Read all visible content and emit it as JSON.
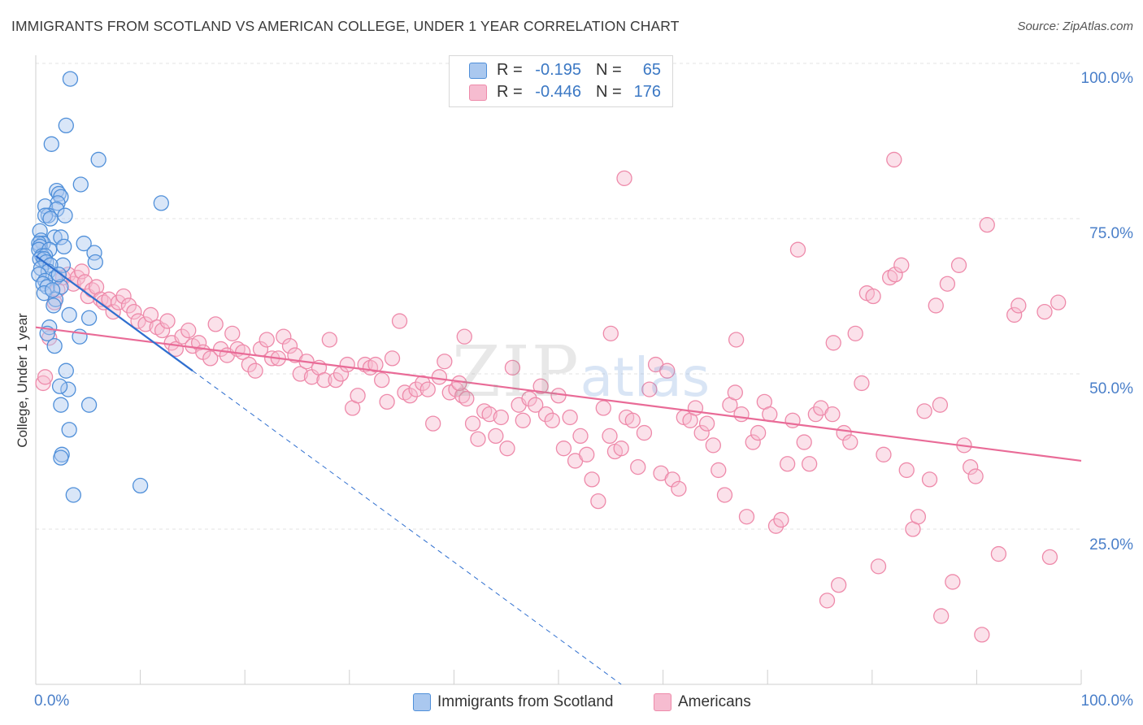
{
  "colors": {
    "blue_fill": "#aac8ef",
    "blue_stroke": "#4f8fd9",
    "blue_line": "#2f6fcf",
    "pink_fill": "#f6bcd0",
    "pink_stroke": "#ee8aaa",
    "pink_line": "#e96b97",
    "grid": "#e3e3e3",
    "axis_text": "#4a7fc9"
  },
  "chart_data": {
    "type": "scatter",
    "title": "IMMIGRANTS FROM SCOTLAND VS AMERICAN COLLEGE, UNDER 1 YEAR CORRELATION CHART",
    "source": "Source: ZipAtlas.com",
    "xlabel": "",
    "ylabel": "College, Under 1 year",
    "xlim": [
      0,
      100
    ],
    "ylim": [
      0,
      100
    ],
    "x_tick_labels": {
      "left": "0.0%",
      "right": "100.0%"
    },
    "y_tick_labels": [
      {
        "value": 100,
        "label": "100.0%"
      },
      {
        "value": 75,
        "label": "75.0%"
      },
      {
        "value": 50,
        "label": "50.0%"
      },
      {
        "value": 25,
        "label": "25.0%"
      }
    ],
    "watermark": {
      "zip": "ZIP",
      "atlas": "atlas"
    },
    "legend": [
      {
        "series": "Immigrants from Scotland",
        "r_label": "R =",
        "r_value": "-0.195",
        "n_label": "N =",
        "n_value": "65"
      },
      {
        "series": "Americans",
        "r_label": "R =",
        "r_value": "-0.446",
        "n_label": "N =",
        "n_value": "176"
      }
    ],
    "series": [
      {
        "name": "Immigrants from Scotland",
        "trendline": {
          "x0": 0,
          "y0": 69.0,
          "x1": 15.0,
          "y1": 50.5,
          "dash_to_x": 56.0,
          "dash_to_y": 0
        },
        "points": [
          [
            3.3,
            97.5
          ],
          [
            2.9,
            90.0
          ],
          [
            1.5,
            87.0
          ],
          [
            6.0,
            84.5
          ],
          [
            4.3,
            80.5
          ],
          [
            2.0,
            79.5
          ],
          [
            2.2,
            79.0
          ],
          [
            2.4,
            78.5
          ],
          [
            2.1,
            77.5
          ],
          [
            12.0,
            77.5
          ],
          [
            0.9,
            77.0
          ],
          [
            2.0,
            76.5
          ],
          [
            1.2,
            75.5
          ],
          [
            2.8,
            75.5
          ],
          [
            0.9,
            75.5
          ],
          [
            1.4,
            75.0
          ],
          [
            0.4,
            73.0
          ],
          [
            1.8,
            72.0
          ],
          [
            2.4,
            72.0
          ],
          [
            0.5,
            71.5
          ],
          [
            0.7,
            71.0
          ],
          [
            0.3,
            71.0
          ],
          [
            4.6,
            71.0
          ],
          [
            2.7,
            70.5
          ],
          [
            0.4,
            70.5
          ],
          [
            0.3,
            70.0
          ],
          [
            1.3,
            70.0
          ],
          [
            5.6,
            69.5
          ],
          [
            0.6,
            69.0
          ],
          [
            0.9,
            69.0
          ],
          [
            0.4,
            68.5
          ],
          [
            0.8,
            68.5
          ],
          [
            1.0,
            68.0
          ],
          [
            5.7,
            68.0
          ],
          [
            2.6,
            67.5
          ],
          [
            1.4,
            67.5
          ],
          [
            0.5,
            67.0
          ],
          [
            1.2,
            66.5
          ],
          [
            0.3,
            66.0
          ],
          [
            1.9,
            65.5
          ],
          [
            0.9,
            65.0
          ],
          [
            0.7,
            64.5
          ],
          [
            1.1,
            64.0
          ],
          [
            2.4,
            64.0
          ],
          [
            0.8,
            63.0
          ],
          [
            1.9,
            62.0
          ],
          [
            1.7,
            61.0
          ],
          [
            3.2,
            59.5
          ],
          [
            5.1,
            59.0
          ],
          [
            1.3,
            57.5
          ],
          [
            1.1,
            56.5
          ],
          [
            4.2,
            56.0
          ],
          [
            1.8,
            54.5
          ],
          [
            2.9,
            50.5
          ],
          [
            3.1,
            47.5
          ],
          [
            2.3,
            48.0
          ],
          [
            2.4,
            45.0
          ],
          [
            5.1,
            45.0
          ],
          [
            3.2,
            41.0
          ],
          [
            2.5,
            37.0
          ],
          [
            2.4,
            36.5
          ],
          [
            3.6,
            30.5
          ],
          [
            10.0,
            32.0
          ],
          [
            2.2,
            66.0
          ],
          [
            1.6,
            63.5
          ]
        ]
      },
      {
        "name": "Americans",
        "trendline": {
          "x0": 0,
          "y0": 57.5,
          "x1": 100,
          "y1": 36.0
        },
        "points": [
          [
            0.7,
            48.5
          ],
          [
            0.9,
            49.5
          ],
          [
            1.3,
            55.8
          ],
          [
            1.8,
            61.5
          ],
          [
            2.1,
            63.5
          ],
          [
            2.6,
            65.5
          ],
          [
            3.1,
            66.0
          ],
          [
            3.6,
            64.5
          ],
          [
            4.0,
            65.5
          ],
          [
            4.4,
            66.5
          ],
          [
            4.7,
            64.8
          ],
          [
            5.0,
            62.5
          ],
          [
            5.4,
            63.5
          ],
          [
            5.8,
            64.0
          ],
          [
            6.2,
            62.0
          ],
          [
            6.5,
            61.5
          ],
          [
            7.0,
            62.0
          ],
          [
            7.4,
            60.0
          ],
          [
            7.9,
            61.5
          ],
          [
            8.4,
            62.5
          ],
          [
            8.9,
            61.0
          ],
          [
            9.4,
            60.0
          ],
          [
            9.8,
            58.5
          ],
          [
            10.5,
            58.0
          ],
          [
            11.0,
            59.5
          ],
          [
            11.6,
            57.5
          ],
          [
            12.1,
            57.0
          ],
          [
            12.6,
            58.5
          ],
          [
            13.0,
            55.0
          ],
          [
            13.4,
            54.0
          ],
          [
            14.0,
            56.0
          ],
          [
            14.6,
            57.0
          ],
          [
            15.0,
            54.5
          ],
          [
            15.6,
            55.0
          ],
          [
            16.0,
            53.5
          ],
          [
            16.7,
            52.5
          ],
          [
            17.2,
            58.0
          ],
          [
            17.7,
            54.0
          ],
          [
            18.3,
            53.0
          ],
          [
            18.8,
            56.5
          ],
          [
            19.3,
            54.0
          ],
          [
            19.8,
            53.5
          ],
          [
            20.4,
            51.5
          ],
          [
            21.0,
            50.5
          ],
          [
            21.5,
            54.0
          ],
          [
            22.1,
            55.5
          ],
          [
            22.6,
            52.5
          ],
          [
            23.2,
            52.5
          ],
          [
            23.7,
            56.0
          ],
          [
            24.3,
            54.5
          ],
          [
            24.8,
            53.0
          ],
          [
            25.3,
            50.0
          ],
          [
            25.9,
            52.0
          ],
          [
            26.4,
            49.5
          ],
          [
            27.1,
            51.0
          ],
          [
            27.6,
            49.0
          ],
          [
            28.1,
            55.5
          ],
          [
            28.7,
            49.0
          ],
          [
            29.2,
            50.0
          ],
          [
            29.8,
            51.5
          ],
          [
            30.3,
            44.5
          ],
          [
            30.8,
            46.5
          ],
          [
            31.5,
            51.5
          ],
          [
            32.0,
            51.0
          ],
          [
            32.5,
            51.5
          ],
          [
            33.1,
            49.0
          ],
          [
            33.6,
            45.5
          ],
          [
            34.1,
            52.5
          ],
          [
            34.8,
            58.5
          ],
          [
            35.3,
            47.0
          ],
          [
            35.8,
            46.5
          ],
          [
            36.4,
            47.5
          ],
          [
            37.0,
            48.5
          ],
          [
            37.5,
            47.5
          ],
          [
            38.0,
            42.0
          ],
          [
            38.6,
            49.5
          ],
          [
            39.1,
            52.0
          ],
          [
            39.6,
            47.0
          ],
          [
            40.2,
            47.5
          ],
          [
            40.8,
            46.5
          ],
          [
            41.2,
            46.0
          ],
          [
            41.8,
            42.0
          ],
          [
            42.3,
            39.5
          ],
          [
            42.9,
            44.0
          ],
          [
            43.4,
            43.5
          ],
          [
            44.0,
            40.0
          ],
          [
            44.5,
            43.0
          ],
          [
            45.1,
            38.0
          ],
          [
            45.6,
            51.0
          ],
          [
            46.2,
            45.0
          ],
          [
            46.6,
            42.5
          ],
          [
            47.2,
            46.0
          ],
          [
            47.8,
            45.0
          ],
          [
            48.3,
            48.0
          ],
          [
            48.8,
            43.5
          ],
          [
            49.4,
            42.5
          ],
          [
            50.0,
            46.5
          ],
          [
            50.5,
            38.0
          ],
          [
            51.1,
            43.0
          ],
          [
            51.6,
            36.0
          ],
          [
            52.1,
            40.0
          ],
          [
            52.7,
            37.0
          ],
          [
            53.2,
            33.0
          ],
          [
            53.8,
            29.5
          ],
          [
            54.3,
            44.5
          ],
          [
            54.9,
            40.0
          ],
          [
            55.4,
            37.5
          ],
          [
            56.0,
            38.0
          ],
          [
            56.5,
            43.0
          ],
          [
            57.1,
            42.5
          ],
          [
            57.6,
            35.0
          ],
          [
            58.2,
            40.5
          ],
          [
            58.7,
            47.5
          ],
          [
            59.3,
            51.5
          ],
          [
            59.8,
            34.0
          ],
          [
            60.4,
            50.5
          ],
          [
            60.9,
            33.0
          ],
          [
            61.5,
            31.5
          ],
          [
            62.0,
            43.0
          ],
          [
            62.6,
            42.5
          ],
          [
            63.1,
            44.5
          ],
          [
            63.7,
            40.5
          ],
          [
            64.2,
            42.0
          ],
          [
            64.8,
            38.5
          ],
          [
            65.3,
            34.5
          ],
          [
            65.9,
            30.5
          ],
          [
            66.4,
            45.0
          ],
          [
            66.9,
            47.0
          ],
          [
            67.5,
            43.5
          ],
          [
            68.0,
            27.0
          ],
          [
            68.6,
            39.0
          ],
          [
            69.1,
            40.5
          ],
          [
            69.7,
            45.5
          ],
          [
            70.2,
            43.5
          ],
          [
            70.8,
            25.5
          ],
          [
            71.3,
            26.5
          ],
          [
            71.9,
            35.5
          ],
          [
            72.4,
            42.5
          ],
          [
            72.9,
            70.0
          ],
          [
            73.5,
            39.0
          ],
          [
            74.0,
            35.5
          ],
          [
            74.6,
            43.5
          ],
          [
            75.1,
            44.5
          ],
          [
            75.7,
            13.5
          ],
          [
            76.2,
            43.5
          ],
          [
            76.8,
            16.0
          ],
          [
            77.3,
            40.5
          ],
          [
            77.9,
            39.0
          ],
          [
            78.4,
            56.5
          ],
          [
            79.0,
            48.5
          ],
          [
            79.5,
            63.0
          ],
          [
            80.1,
            62.5
          ],
          [
            80.6,
            19.0
          ],
          [
            81.1,
            37.0
          ],
          [
            81.7,
            65.5
          ],
          [
            82.2,
            66.0
          ],
          [
            82.8,
            67.5
          ],
          [
            83.3,
            34.5
          ],
          [
            83.9,
            25.0
          ],
          [
            84.4,
            27.0
          ],
          [
            85.0,
            44.0
          ],
          [
            85.5,
            33.0
          ],
          [
            86.1,
            61.0
          ],
          [
            86.6,
            11.0
          ],
          [
            87.2,
            64.5
          ],
          [
            87.7,
            16.5
          ],
          [
            88.3,
            67.5
          ],
          [
            88.8,
            38.5
          ],
          [
            89.4,
            35.0
          ],
          [
            89.9,
            33.5
          ],
          [
            90.5,
            8.0
          ],
          [
            91.0,
            74.0
          ],
          [
            92.1,
            21.0
          ],
          [
            93.6,
            59.5
          ],
          [
            94.0,
            61.0
          ],
          [
            86.5,
            45.0
          ],
          [
            41.0,
            56.0
          ],
          [
            40.5,
            48.5
          ],
          [
            56.3,
            81.5
          ],
          [
            82.1,
            84.5
          ],
          [
            55.0,
            56.5
          ],
          [
            76.3,
            55.0
          ],
          [
            67.0,
            55.5
          ],
          [
            96.5,
            60.0
          ],
          [
            97.8,
            61.5
          ],
          [
            97.0,
            20.5
          ]
        ]
      }
    ]
  }
}
